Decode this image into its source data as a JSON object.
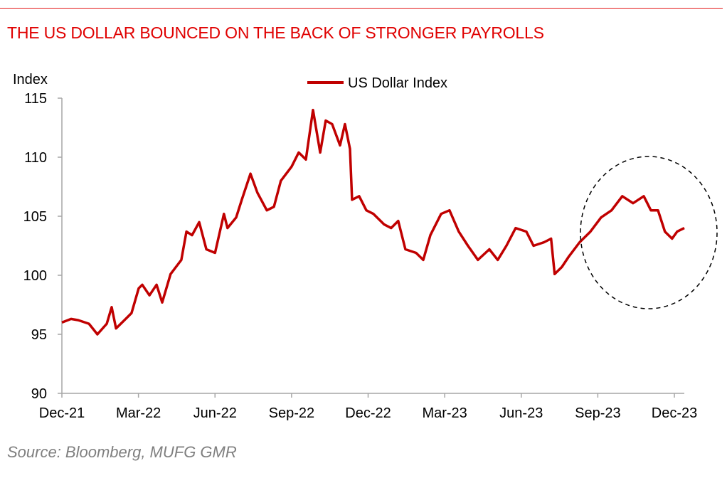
{
  "title": "THE US DOLLAR BOUNCED ON THE BACK OF STRONGER PAYROLLS",
  "source": "Source: Bloomberg, MUFG GMR",
  "colors": {
    "line": "#c00000",
    "title": "#e00000",
    "axis": "#a6a6a6"
  },
  "chart_data": {
    "type": "line",
    "title": "THE US DOLLAR BOUNCED ON THE BACK OF STRONGER PAYROLLS",
    "ylabel": "Index",
    "xlabel": "",
    "ylim": [
      90,
      115
    ],
    "yticks": [
      "90",
      "95",
      "100",
      "105",
      "110",
      "115"
    ],
    "xticks": [
      "Dec-21",
      "Mar-22",
      "Jun-22",
      "Sep-22",
      "Dec-22",
      "Mar-23",
      "Jun-23",
      "Sep-23",
      "Dec-23"
    ],
    "x_unit": "months since Dec-21",
    "legend": {
      "position": "top-center",
      "entries": [
        "US Dollar Index"
      ]
    },
    "series": [
      {
        "name": "US Dollar Index",
        "points": [
          [
            0,
            96.0
          ],
          [
            0.36,
            96.3
          ],
          [
            0.64,
            96.2
          ],
          [
            1.06,
            95.9
          ],
          [
            1.39,
            95.0
          ],
          [
            1.76,
            95.9
          ],
          [
            1.95,
            97.3
          ],
          [
            2.12,
            95.5
          ],
          [
            2.45,
            96.2
          ],
          [
            2.73,
            96.8
          ],
          [
            3.01,
            98.9
          ],
          [
            3.15,
            99.2
          ],
          [
            3.43,
            98.3
          ],
          [
            3.71,
            99.2
          ],
          [
            3.93,
            97.7
          ],
          [
            4.26,
            100.1
          ],
          [
            4.68,
            101.3
          ],
          [
            4.88,
            103.7
          ],
          [
            5.1,
            103.4
          ],
          [
            5.38,
            104.5
          ],
          [
            5.66,
            102.2
          ],
          [
            6.0,
            101.9
          ],
          [
            6.35,
            105.2
          ],
          [
            6.49,
            104.0
          ],
          [
            6.83,
            104.9
          ],
          [
            7.05,
            106.4
          ],
          [
            7.39,
            108.6
          ],
          [
            7.66,
            107.0
          ],
          [
            8.03,
            105.5
          ],
          [
            8.31,
            105.8
          ],
          [
            8.58,
            108.0
          ],
          [
            9.0,
            109.2
          ],
          [
            9.28,
            110.4
          ],
          [
            9.56,
            109.8
          ],
          [
            9.84,
            114.0
          ],
          [
            10.12,
            110.4
          ],
          [
            10.34,
            113.1
          ],
          [
            10.59,
            112.8
          ],
          [
            10.9,
            111.0
          ],
          [
            11.09,
            112.8
          ],
          [
            11.29,
            110.7
          ],
          [
            11.37,
            106.4
          ],
          [
            11.65,
            106.7
          ],
          [
            11.93,
            105.5
          ],
          [
            12.21,
            105.2
          ],
          [
            12.63,
            104.3
          ],
          [
            12.9,
            104.0
          ],
          [
            13.18,
            104.6
          ],
          [
            13.46,
            102.2
          ],
          [
            13.88,
            101.9
          ],
          [
            14.16,
            101.3
          ],
          [
            14.44,
            103.4
          ],
          [
            14.86,
            105.2
          ],
          [
            15.19,
            105.5
          ],
          [
            15.55,
            103.7
          ],
          [
            15.91,
            102.5
          ],
          [
            16.3,
            101.3
          ],
          [
            16.75,
            102.2
          ],
          [
            17.08,
            101.3
          ],
          [
            17.42,
            102.5
          ],
          [
            17.78,
            104.0
          ],
          [
            18.2,
            103.7
          ],
          [
            18.48,
            102.5
          ],
          [
            18.9,
            102.8
          ],
          [
            19.17,
            103.1
          ],
          [
            19.31,
            100.1
          ],
          [
            19.59,
            100.7
          ],
          [
            19.87,
            101.6
          ],
          [
            20.29,
            102.8
          ],
          [
            20.71,
            103.7
          ],
          [
            21.13,
            104.9
          ],
          [
            21.54,
            105.5
          ],
          [
            21.96,
            106.7
          ],
          [
            22.38,
            106.1
          ],
          [
            22.8,
            106.7
          ],
          [
            23.08,
            105.5
          ],
          [
            23.36,
            105.5
          ],
          [
            23.63,
            103.7
          ],
          [
            23.91,
            103.1
          ],
          [
            24.11,
            103.7
          ],
          [
            24.39,
            104.0
          ]
        ]
      }
    ]
  }
}
